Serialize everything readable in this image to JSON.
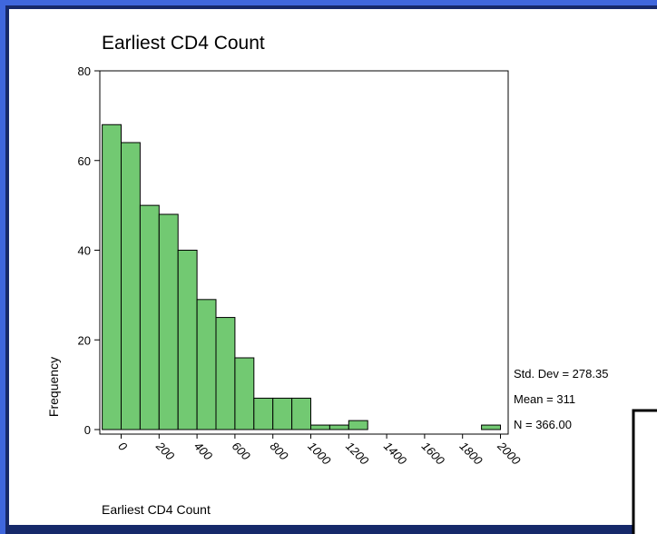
{
  "chart_data": {
    "type": "bar",
    "title": "Earliest CD4 Count",
    "xlabel": "Earliest CD4 Count",
    "ylabel": "Frequency",
    "ylim": [
      0,
      80
    ],
    "yticks": [
      0,
      20,
      40,
      60,
      80
    ],
    "xlim": [
      -100,
      2050
    ],
    "xticks": [
      0,
      200,
      400,
      600,
      800,
      1000,
      1200,
      1400,
      1600,
      1800,
      2000
    ],
    "bin_width": 100,
    "bins": [
      {
        "start": -100,
        "end": 0,
        "value": 68
      },
      {
        "start": 0,
        "end": 100,
        "value": 64
      },
      {
        "start": 100,
        "end": 200,
        "value": 50
      },
      {
        "start": 200,
        "end": 300,
        "value": 48
      },
      {
        "start": 300,
        "end": 400,
        "value": 40
      },
      {
        "start": 400,
        "end": 500,
        "value": 29
      },
      {
        "start": 500,
        "end": 600,
        "value": 25
      },
      {
        "start": 600,
        "end": 700,
        "value": 16
      },
      {
        "start": 700,
        "end": 800,
        "value": 7
      },
      {
        "start": 800,
        "end": 900,
        "value": 7
      },
      {
        "start": 900,
        "end": 1000,
        "value": 7
      },
      {
        "start": 1000,
        "end": 1100,
        "value": 1
      },
      {
        "start": 1100,
        "end": 1200,
        "value": 1
      },
      {
        "start": 1200,
        "end": 1300,
        "value": 2
      },
      {
        "start": 1300,
        "end": 1400,
        "value": 0
      },
      {
        "start": 1400,
        "end": 1500,
        "value": 0
      },
      {
        "start": 1500,
        "end": 1600,
        "value": 0
      },
      {
        "start": 1600,
        "end": 1700,
        "value": 0
      },
      {
        "start": 1700,
        "end": 1800,
        "value": 0
      },
      {
        "start": 1800,
        "end": 1900,
        "value": 0
      },
      {
        "start": 1900,
        "end": 2000,
        "value": 1
      }
    ],
    "stats": {
      "std_dev": "Std. Dev = 278.35",
      "mean": "Mean = 311",
      "n": "N = 366.00"
    },
    "grid": false
  },
  "colors": {
    "frame_blue": "#3f67dd",
    "frame_dark": "#16296a",
    "bar_fill": "#72c972",
    "bar_stroke": "#000000"
  }
}
